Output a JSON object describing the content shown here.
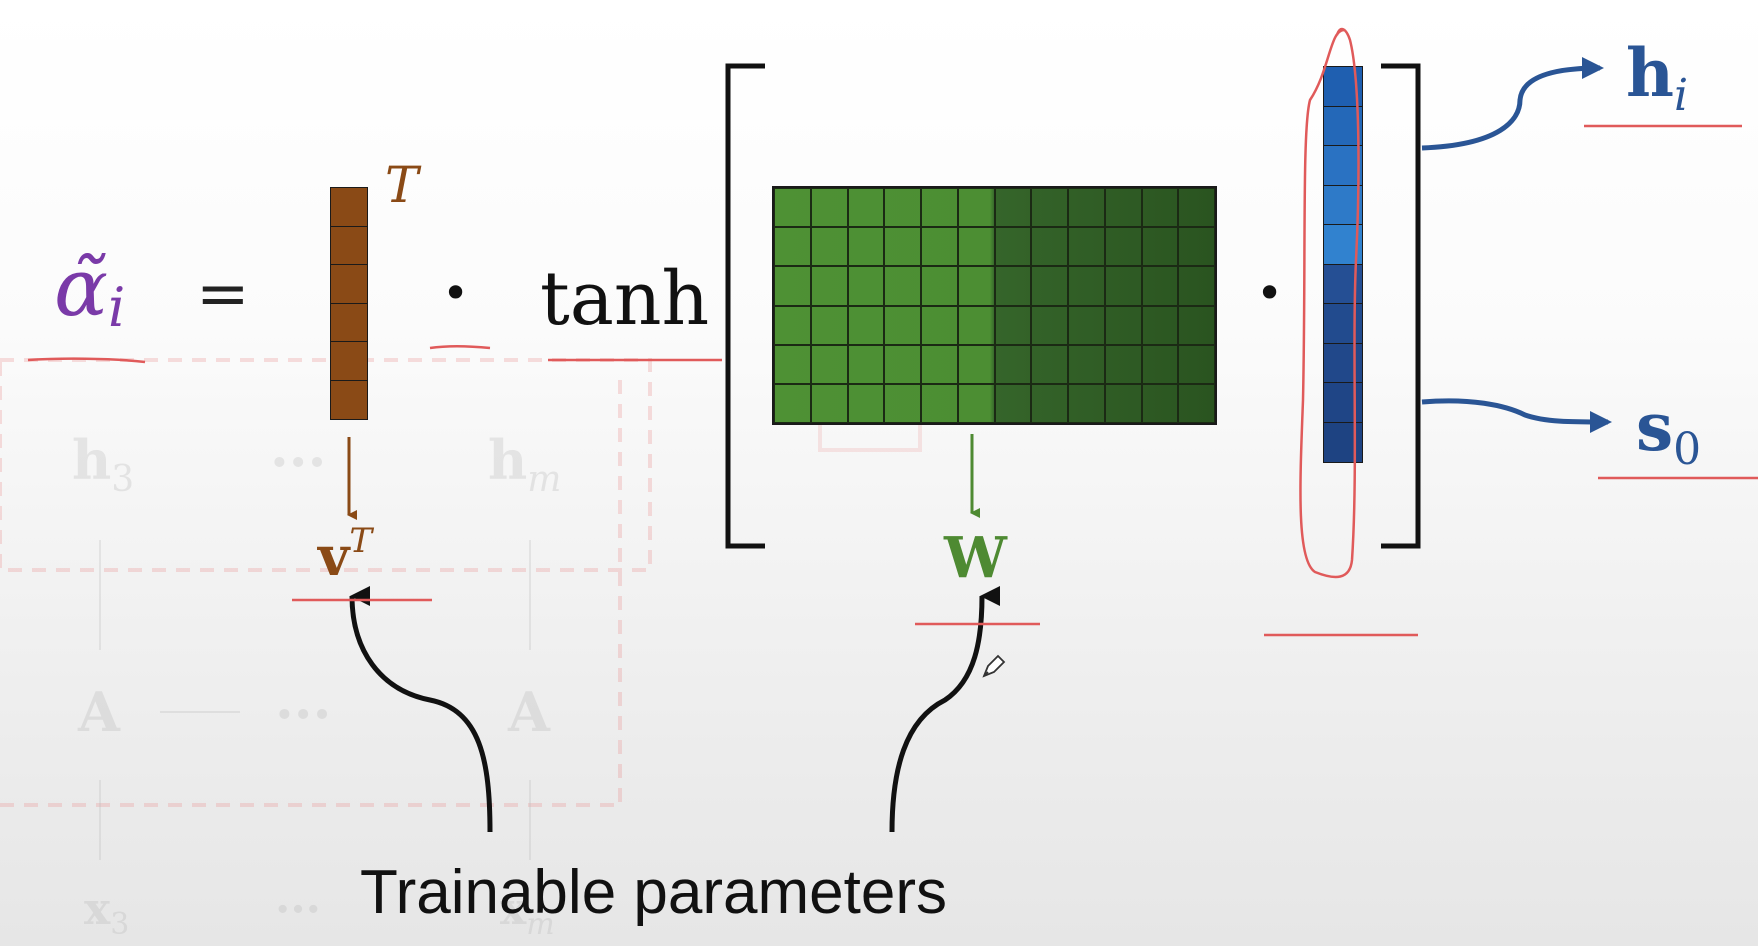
{
  "equation": {
    "lhs": "α̃",
    "lhs_sub": "i",
    "equals": "=",
    "dot": "•",
    "func": "tanh",
    "v_superscript": "T"
  },
  "labels": {
    "v_label": "v",
    "v_sup": "T",
    "w_label": "W",
    "h_label": "h",
    "h_sub": "i",
    "s_label": "s",
    "s_sub": "0"
  },
  "caption": "Trainable parameters",
  "background_ghost": {
    "h3": "h",
    "h3_sub": "3",
    "dots1": "···",
    "hm": "h",
    "hm_sub": "m",
    "A1": "A",
    "dots2": "···",
    "A2": "A",
    "x3": "x",
    "x3_sub": "3",
    "dots3": "···",
    "xm": "x",
    "xm_sub": "m"
  },
  "colors": {
    "alpha_purple": "#7a3aa8",
    "v_brown": "#8a4a16",
    "w_green_light": "#4e9134",
    "w_green_dark": "#2e5a21",
    "blue_top": "#2b6cc0",
    "blue_bottom": "#1e4a8e",
    "label_blue": "#2a5595",
    "annotation_red": "#e05a5a"
  },
  "icons": [
    "pen-cursor-icon"
  ]
}
